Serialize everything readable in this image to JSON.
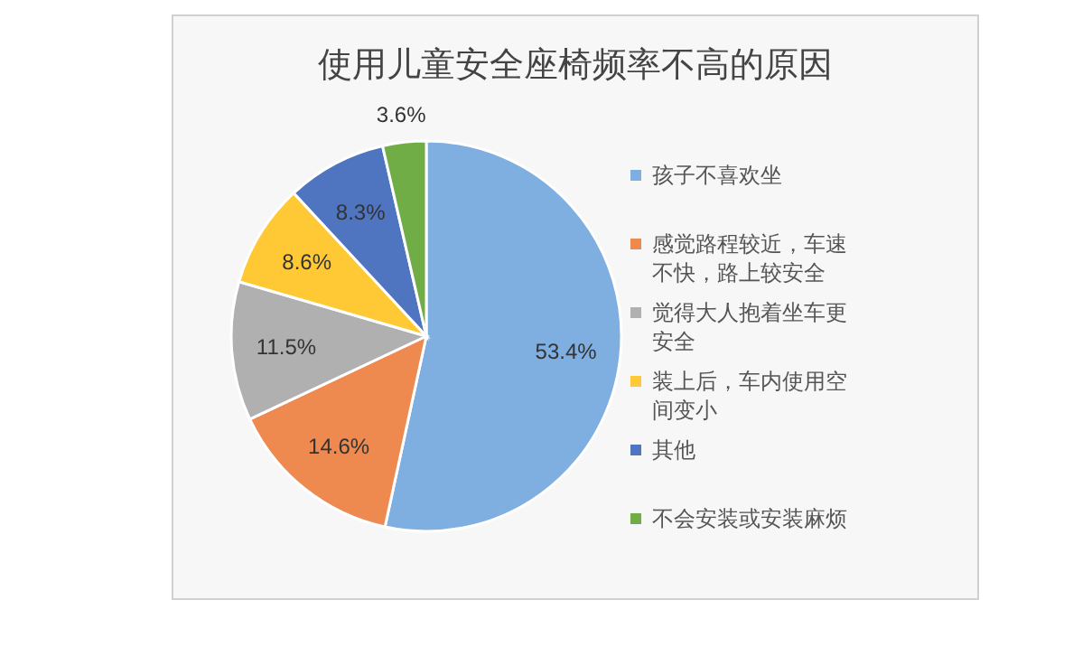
{
  "chart_data": {
    "type": "pie",
    "title": "使用儿童安全座椅频率不高的原因",
    "categories": [
      "孩子不喜欢坐",
      "感觉路程较近，车速不快，路上较安全",
      "觉得大人抱着坐车更安全",
      "装上后，车内使用空间变小",
      "其他",
      "不会安装或安装麻烦"
    ],
    "values": [
      53.4,
      14.6,
      11.5,
      8.6,
      8.3,
      3.6
    ],
    "colors": [
      "#7faee0",
      "#ee8a4f",
      "#b0b0b0",
      "#ffc936",
      "#4f74c0",
      "#70ad47"
    ],
    "value_labels": [
      "53.4%",
      "14.6%",
      "11.5%",
      "8.6%",
      "8.3%",
      "3.6%"
    ],
    "legend": "right"
  }
}
